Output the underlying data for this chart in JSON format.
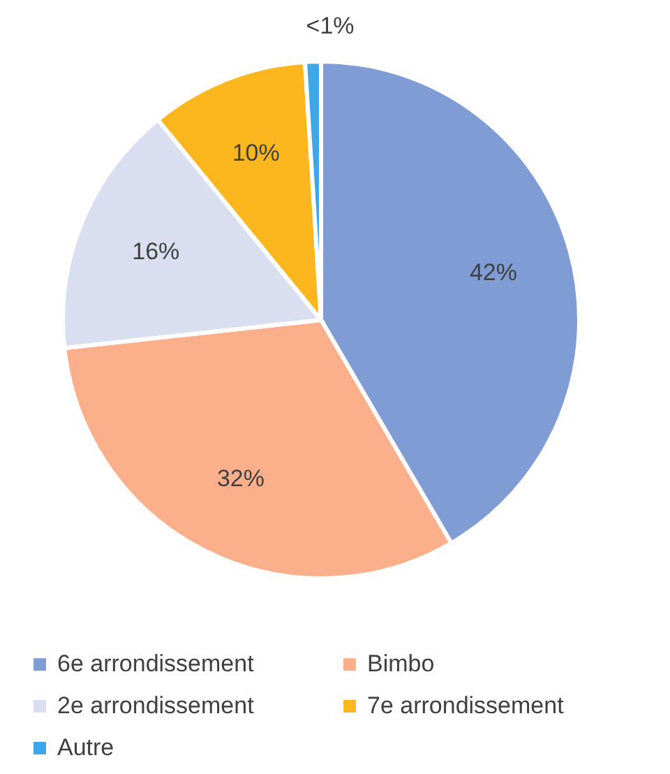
{
  "chart_data": {
    "type": "pie",
    "categories": [
      "6e arrondissement",
      "Bimbo",
      "2e arrondissement",
      "7e arrondissement",
      "Autre"
    ],
    "values": [
      42,
      32,
      16,
      10,
      1
    ],
    "colors": [
      "#7f9cd4",
      "#fbb08b",
      "#d9dff0",
      "#fdb71e",
      "#3fa7e8"
    ],
    "value_labels": [
      "42%",
      "32%",
      "16%",
      "10%",
      "<1%"
    ],
    "legend": "bottom"
  }
}
